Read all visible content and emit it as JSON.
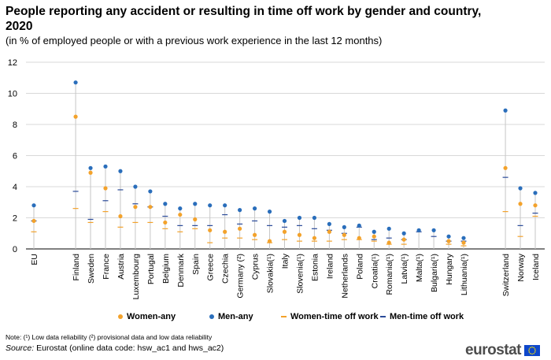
{
  "title": "People reporting any accident or resulting in time off work by gender and country, 2020",
  "subtitle": "(in % of employed people or with a previous work experience in the last 12 months)",
  "note": "Note: (¹) Low data reliability (²) provisional data and low data reliability",
  "source_label": "Source:",
  "source_text": " Eurostat (online data code: hsw_ac1 and hws_ac2)",
  "logo_text": "eurostat",
  "colors": {
    "women": "#f3a22b",
    "men": "#2a6ebb",
    "women_off": "#f3a22b",
    "men_off": "#2a4a99",
    "range_line": "#c6c6c6",
    "grid": "#d9d9d9",
    "axis": "#000000"
  },
  "chart_data": {
    "type": "scatter",
    "ylim": [
      0,
      12
    ],
    "yticks": [
      0,
      2,
      4,
      6,
      8,
      10,
      12
    ],
    "grid": true,
    "legend_position": "bottom",
    "categories": [
      "EU",
      "Finland",
      "Sweden",
      "France",
      "Austria",
      "Luxembourg",
      "Portugal",
      "Belgium",
      "Denmark",
      "Spain",
      "Greece",
      "Czechia",
      "Germany (²)",
      "Cyprus",
      "Slovakia(¹)",
      "Italy",
      "Slovenia(¹)",
      "Estonia",
      "Ireland",
      "Netherlands",
      "Poland",
      "Croatia(¹)",
      "Romania(¹)",
      "Latvia(¹)",
      "Malta(¹)",
      "Bulgaria(¹)",
      "Hungary",
      "Lithuania(¹)",
      "Switzerland",
      "Norway",
      "Iceland"
    ],
    "group_breaks_after": [
      "EU",
      "Lithuania(¹)"
    ],
    "series": [
      {
        "name": "Women-any",
        "marker": "dot",
        "values": [
          1.8,
          8.5,
          4.9,
          3.9,
          2.1,
          2.7,
          2.7,
          1.7,
          2.2,
          1.9,
          1.2,
          1.1,
          1.3,
          0.9,
          0.5,
          1.1,
          0.9,
          0.7,
          1.1,
          0.9,
          0.7,
          0.8,
          0.4,
          0.6,
          null,
          null,
          0.5,
          0.4,
          5.2,
          2.9,
          2.8
        ]
      },
      {
        "name": "Men-any",
        "marker": "dot",
        "values": [
          2.8,
          10.7,
          5.2,
          5.3,
          5.0,
          4.0,
          3.7,
          2.9,
          2.6,
          2.9,
          2.8,
          2.8,
          2.5,
          2.6,
          2.4,
          1.8,
          2.0,
          2.0,
          1.6,
          1.4,
          1.5,
          1.1,
          1.3,
          1.0,
          1.2,
          1.2,
          0.8,
          0.7,
          8.9,
          3.9,
          3.6
        ]
      },
      {
        "name": "Women-time off work",
        "marker": "dash",
        "values": [
          1.1,
          2.6,
          1.7,
          2.4,
          1.4,
          1.7,
          1.7,
          1.3,
          1.1,
          1.3,
          0.4,
          0.7,
          0.7,
          0.6,
          0.4,
          0.6,
          0.5,
          0.5,
          0.5,
          0.6,
          0.6,
          0.5,
          0.3,
          0.3,
          null,
          null,
          0.3,
          0.2,
          2.4,
          0.8,
          2.1
        ]
      },
      {
        "name": "Men-time off work",
        "marker": "dash",
        "values": [
          1.8,
          3.7,
          1.9,
          3.1,
          3.8,
          2.9,
          2.7,
          2.1,
          1.5,
          1.5,
          1.5,
          2.2,
          1.6,
          1.8,
          1.5,
          1.4,
          1.5,
          1.3,
          1.2,
          1.0,
          1.4,
          0.6,
          0.7,
          0.6,
          1.1,
          0.8,
          0.5,
          0.5,
          4.6,
          1.5,
          2.3
        ]
      }
    ]
  }
}
